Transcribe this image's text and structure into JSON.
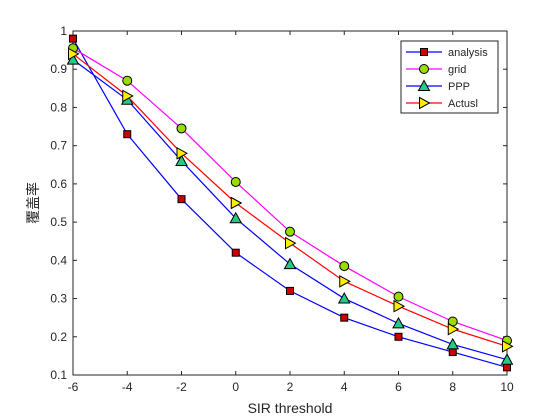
{
  "chart_data": {
    "type": "line",
    "title": "",
    "xlabel": "SIR threshold",
    "ylabel": "覆盖率",
    "xlim": [
      -6,
      10
    ],
    "ylim": [
      0.1,
      1
    ],
    "x": [
      -6,
      -4,
      -2,
      0,
      2,
      4,
      6,
      8,
      10
    ],
    "xticks": [
      "-6",
      "-4",
      "-2",
      "0",
      "2",
      "4",
      "6",
      "8",
      "10"
    ],
    "yticks": [
      "0.1",
      "0.2",
      "0.3",
      "0.4",
      "0.5",
      "0.6",
      "0.7",
      "0.8",
      "0.9",
      "1"
    ],
    "grid": false,
    "legend_position": "top-right",
    "series": [
      {
        "name": "analysis",
        "line_color": "#0000ff",
        "marker": "square",
        "marker_color": "#cc0000",
        "values": [
          0.98,
          0.73,
          0.56,
          0.42,
          0.32,
          0.25,
          0.2,
          0.16,
          0.12
        ]
      },
      {
        "name": "grid",
        "line_color": "#ff00ff",
        "marker": "circle",
        "marker_color": "#99dd00",
        "values": [
          0.955,
          0.87,
          0.745,
          0.605,
          0.475,
          0.385,
          0.305,
          0.24,
          0.19
        ]
      },
      {
        "name": "PPP",
        "line_color": "#0000ff",
        "marker": "triangle-up",
        "marker_color": "#22cc88",
        "values": [
          0.925,
          0.82,
          0.66,
          0.51,
          0.39,
          0.3,
          0.235,
          0.18,
          0.14
        ]
      },
      {
        "name": "Actusl",
        "line_color": "#ff0000",
        "marker": "triangle-right",
        "marker_color": "#ffee00",
        "values": [
          0.94,
          0.83,
          0.68,
          0.55,
          0.445,
          0.345,
          0.28,
          0.22,
          0.175
        ]
      }
    ]
  }
}
